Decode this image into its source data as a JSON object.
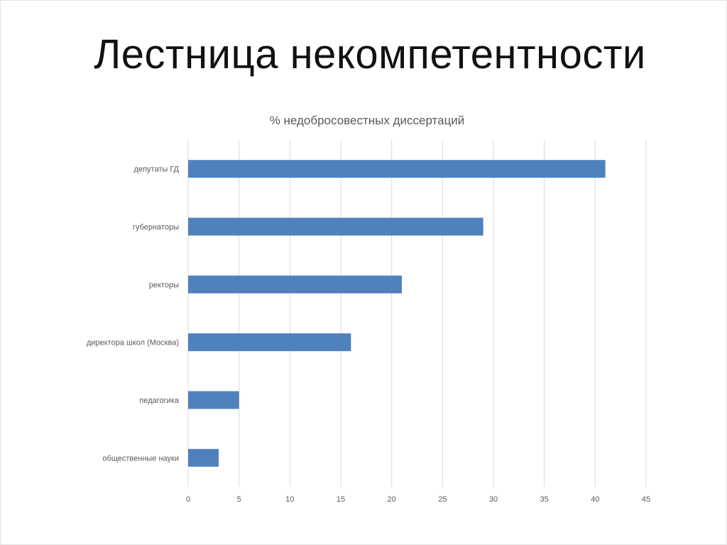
{
  "slide": {
    "title": "Лестница некомпетентности"
  },
  "colors": {
    "bar": "#4f81bd",
    "grid": "#d9d9d9",
    "text": "#595959"
  },
  "chart_data": {
    "type": "bar",
    "orientation": "horizontal",
    "title": "% недобросовестных диссертаций",
    "categories": [
      "депутаты ГД",
      "губернаторы",
      "ректоры",
      "директора школ (Москва)",
      "педагогика",
      "общественные науки"
    ],
    "values": [
      41,
      29,
      21,
      16,
      5,
      3
    ],
    "xticks": [
      0,
      5,
      10,
      15,
      20,
      25,
      30,
      35,
      40,
      45
    ],
    "xlim": [
      0,
      45
    ],
    "grid": true,
    "legend": "none"
  }
}
